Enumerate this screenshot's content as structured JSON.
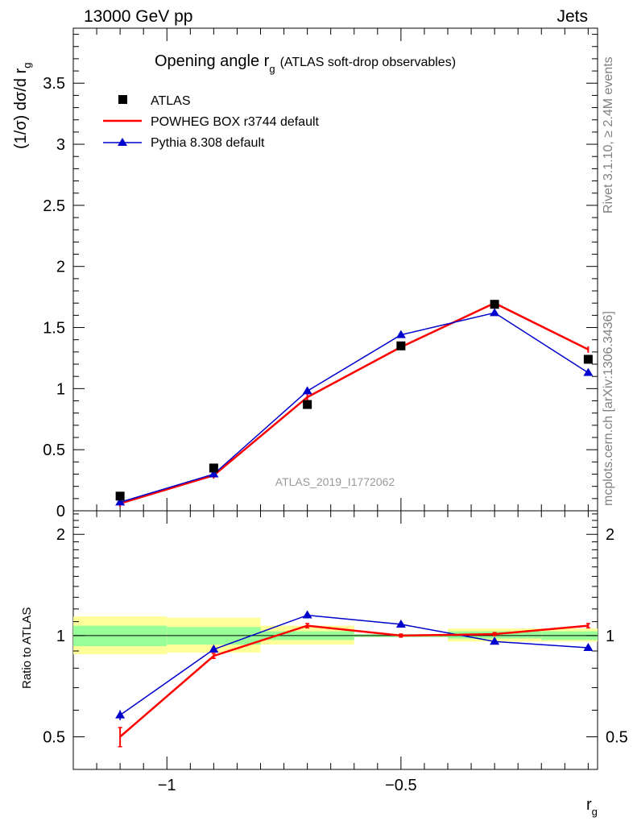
{
  "header": {
    "left": "13000 GeV pp",
    "right": "Jets"
  },
  "side_labels": {
    "top": "Rivet 3.1.10, ≥ 2.4M events",
    "bottom": "mcplots.cern.ch [arXiv:1306.3436]"
  },
  "chart_data": [
    {
      "type": "scatter",
      "title": {
        "main": "Opening angle r",
        "sub": "g",
        "suffix": "(ATLAS soft-drop observables)"
      },
      "ylabel": {
        "main": "(1/σ) dσ/d r",
        "sub": "g"
      },
      "watermark": "ATLAS_2019_I1772062",
      "xlim": [
        -1.2,
        -0.08
      ],
      "ylim": [
        0,
        3.95
      ],
      "y_ticks": [
        "0",
        "0.5",
        "1",
        "1.5",
        "2",
        "2.5",
        "3",
        "3.5"
      ],
      "x": [
        -1.1,
        -0.9,
        -0.7,
        -0.5,
        -0.3,
        -0.1
      ],
      "series": [
        {
          "name": "ATLAS",
          "marker": "square",
          "color": "#000000",
          "values": [
            0.12,
            0.35,
            0.87,
            1.35,
            1.69,
            1.24
          ]
        },
        {
          "name": "POWHEG BOX r3744 default",
          "marker": "line",
          "color": "#ff0000",
          "values": [
            0.06,
            0.29,
            0.93,
            1.34,
            1.7,
            1.32
          ]
        },
        {
          "name": "Pythia 8.308 default",
          "marker": "triangle",
          "color": "#0000cc",
          "values": [
            0.07,
            0.3,
            0.98,
            1.44,
            1.62,
            1.13
          ]
        }
      ]
    },
    {
      "type": "line",
      "ylabel": "Ratio to ATLAS",
      "xlabel": {
        "main": "r",
        "sub": "g"
      },
      "xlim": [
        -1.2,
        -0.08
      ],
      "ylim": [
        0.4,
        2.35
      ],
      "y_ticks": [
        "0.5",
        "1",
        "2"
      ],
      "x_ticks": [
        "−1",
        "−0.5"
      ],
      "x": [
        -1.1,
        -0.9,
        -0.7,
        -0.5,
        -0.3,
        -0.1
      ],
      "bins": [
        [
          -1.2,
          -1.0
        ],
        [
          -1.0,
          -0.8
        ],
        [
          -0.8,
          -0.6
        ],
        [
          -0.6,
          -0.4
        ],
        [
          -0.4,
          -0.2
        ],
        [
          -0.2,
          -0.08
        ]
      ],
      "band_stat": [
        [
          0.93,
          1.07
        ],
        [
          0.94,
          1.06
        ],
        [
          0.97,
          1.03
        ],
        [
          0.99,
          1.01
        ],
        [
          0.98,
          1.03
        ],
        [
          0.97,
          1.03
        ]
      ],
      "band_total": [
        [
          0.88,
          1.14
        ],
        [
          0.89,
          1.13
        ],
        [
          0.94,
          1.07
        ],
        [
          0.99,
          1.01
        ],
        [
          0.96,
          1.05
        ],
        [
          0.96,
          1.05
        ]
      ],
      "series": [
        {
          "name": "POWHEG BOX r3744 default",
          "color": "#ff0000",
          "values": [
            0.5,
            0.87,
            1.07,
            1.0,
            1.01,
            1.07
          ],
          "errors": [
            0.03,
            0.01,
            0.01,
            0.005,
            0.005,
            0.01
          ]
        },
        {
          "name": "Pythia 8.308 default",
          "color": "#0000cc",
          "values": [
            0.58,
            0.91,
            1.15,
            1.08,
            0.96,
            0.92
          ],
          "errors": [
            0.02,
            0.01,
            0.01,
            0.005,
            0.005,
            0.005
          ]
        }
      ]
    }
  ]
}
